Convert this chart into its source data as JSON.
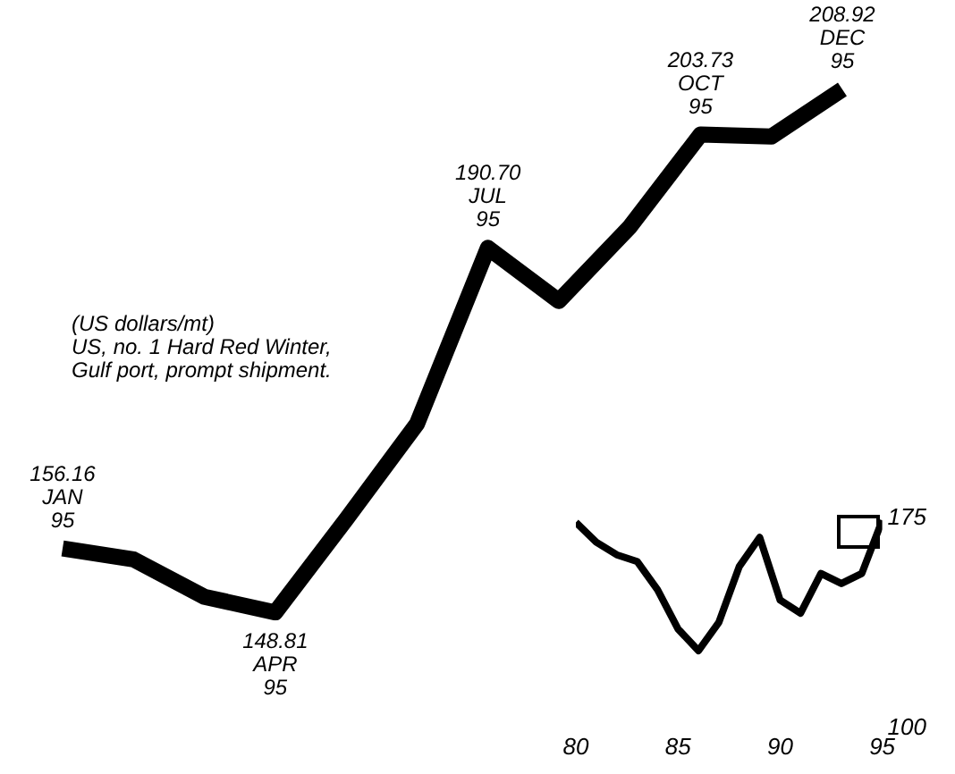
{
  "chart_data": [
    {
      "type": "line",
      "categories": [
        null,
        null,
        null,
        null,
        null,
        null,
        null,
        null,
        null,
        null,
        null,
        null
      ],
      "series": [
        {
          "color": "#000000",
          "values": [
            156.16,
            154.9,
            150.6,
            148.81,
            159.5,
            170.5,
            190.7,
            184.6,
            193.1,
            203.73,
            203.5,
            208.92
          ],
          "value_labels": [
            "156.16\nJAN\n95",
            null,
            null,
            "148.81\nAPR\n95",
            null,
            null,
            "190.70\nJUL\n95",
            null,
            null,
            "203.73\nOCT\n95",
            null,
            "208.92\nDEC\n95"
          ]
        }
      ],
      "marker": "none",
      "annotations": [
        "(US dollars/mt)\nUS, no. 1 Hard Red Winter,\nGulf port, prompt shipment."
      ]
    },
    {
      "type": "line",
      "x": [
        1980,
        1981,
        1982,
        1983,
        1984,
        1985,
        1986,
        1987,
        1988,
        1989,
        1990,
        1991,
        1992,
        1993,
        1994,
        1995
      ],
      "series": [
        {
          "color": "#000000",
          "values": [
            173.6,
            166.5,
            162.0,
            159.6,
            149.5,
            135.5,
            127.7,
            137.8,
            157.8,
            168.2,
            145.8,
            141.1,
            155.3,
            151.7,
            155.3,
            174.3
          ]
        }
      ],
      "xlim": [
        1980,
        1995
      ],
      "xticks": [
        {
          "value": 1980,
          "label": "80"
        },
        {
          "value": 1985,
          "label": "85"
        },
        {
          "value": 1990,
          "label": "90"
        },
        {
          "value": 1995,
          "label": "95"
        }
      ],
      "ylim": [
        100,
        175
      ],
      "yticks": [
        100,
        175
      ],
      "marker": "none"
    }
  ]
}
